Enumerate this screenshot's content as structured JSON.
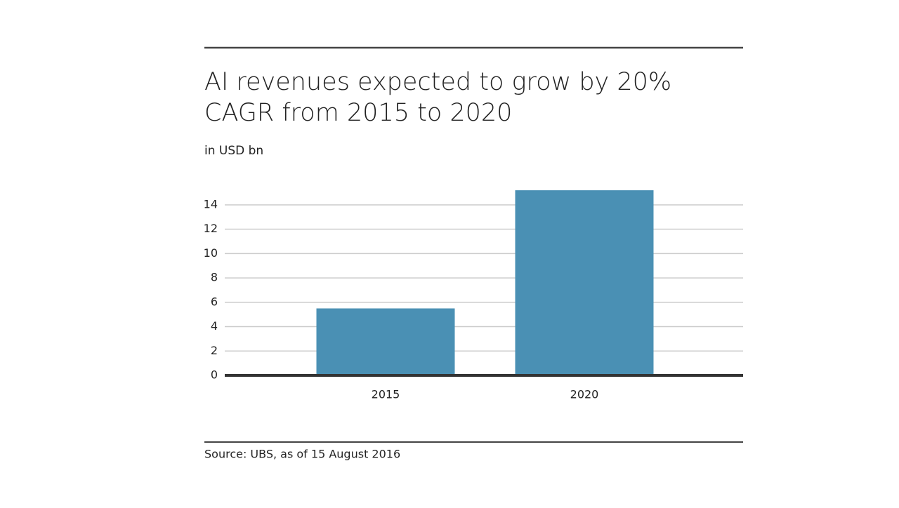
{
  "chart_data": {
    "type": "bar",
    "title": [
      "AI revenues expected to grow by 20%",
      "CAGR from 2015 to 2020"
    ],
    "subtitle": "in USD bn",
    "source": "Source: UBS, as of 15 August 2016",
    "categories": [
      "2015",
      "2020"
    ],
    "values": [
      5.5,
      15.2
    ],
    "color": "#4a90b4",
    "ylim": [
      0,
      16
    ],
    "yticks": [
      0,
      2,
      4,
      6,
      8,
      10,
      12,
      14
    ],
    "grid": true
  }
}
